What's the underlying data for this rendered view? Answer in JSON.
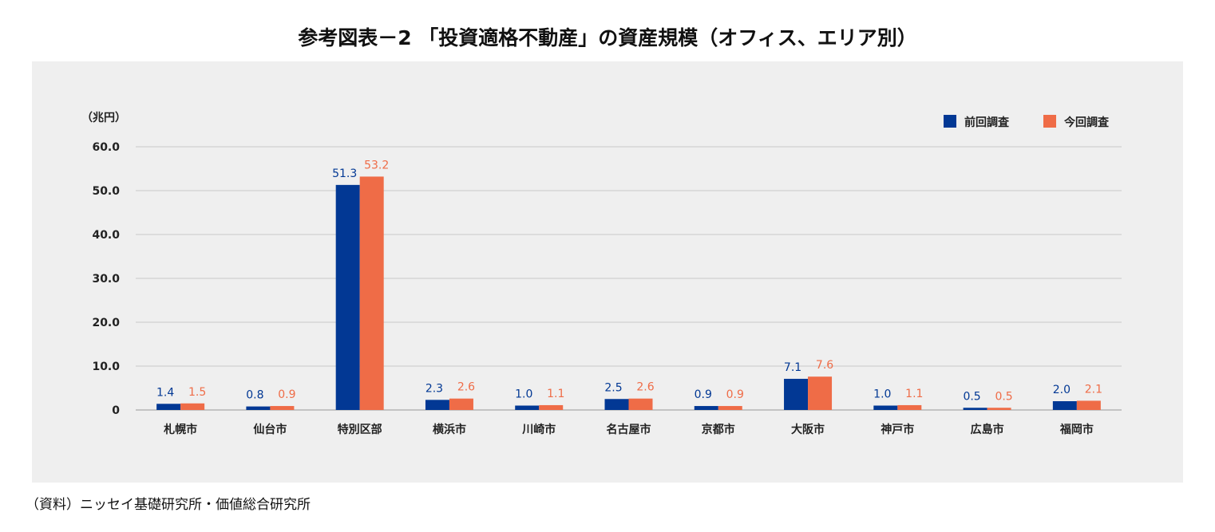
{
  "title": "参考図表－2 「投資適格不動産」の資産規模（オフィス、エリア別）",
  "source": "（資料）ニッセイ基礎研究所・価値総合研究所",
  "colors": {
    "previous": "#023894",
    "current": "#ef6c47",
    "background": "#efefef",
    "grid": "#c8c8c8"
  },
  "chart_data": {
    "type": "bar",
    "title": "参考図表－2 「投資適格不動産」の資産規模（オフィス、エリア別）",
    "unit_label": "（兆円）",
    "ylim": [
      0,
      60
    ],
    "yticks": [
      "0",
      "10.0",
      "20.0",
      "30.0",
      "40.0",
      "50.0",
      "60.0"
    ],
    "grid": true,
    "legend_position": "top-right",
    "categories": [
      "札幌市",
      "仙台市",
      "特別区部",
      "横浜市",
      "川崎市",
      "名古屋市",
      "京都市",
      "大阪市",
      "神戸市",
      "広島市",
      "福岡市"
    ],
    "series": [
      {
        "name": "前回調査",
        "values": [
          1.4,
          0.8,
          51.3,
          2.3,
          1.0,
          2.5,
          0.9,
          7.1,
          1.0,
          0.5,
          2.0
        ]
      },
      {
        "name": "今回調査",
        "values": [
          1.5,
          0.9,
          53.2,
          2.6,
          1.1,
          2.6,
          0.9,
          7.6,
          1.1,
          0.5,
          2.1
        ]
      }
    ]
  }
}
